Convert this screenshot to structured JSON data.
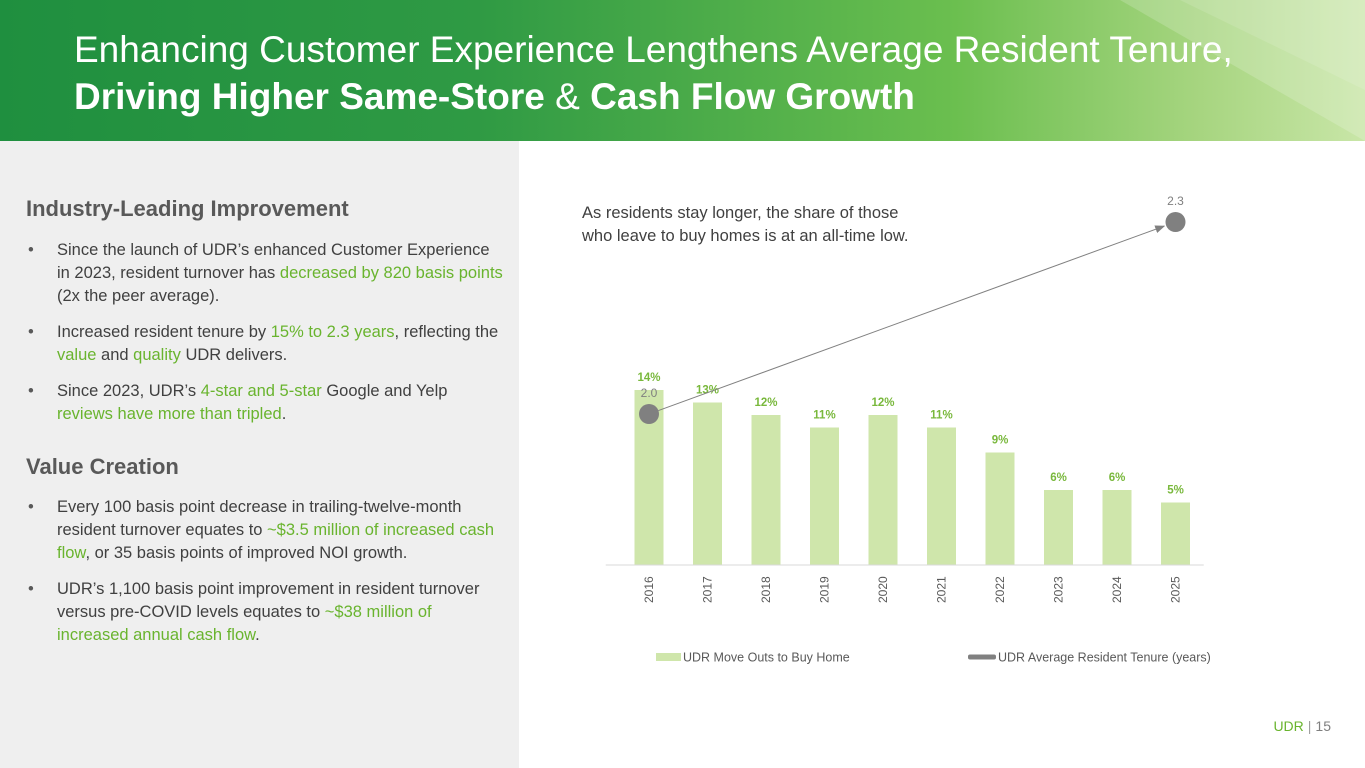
{
  "title": {
    "part1": "Enhancing Customer Experience Lengthens Average Resident Tenure,",
    "bold1": "Driving Higher Same-Store",
    "amp": "&",
    "bold2": "Cash Flow Growth"
  },
  "left": {
    "section1": {
      "heading": "Industry-Leading Improvement",
      "bullets": [
        {
          "a": "Since the launch of UDR’s enhanced Customer Experience in 2023, resident turnover has ",
          "h": "decreased by 820 basis points",
          "b": " (2x the peer average)."
        },
        {
          "a": "Increased resident tenure by ",
          "h": "15% to 2.3 years",
          "b": ", reflecting the ",
          "h2": "value",
          "c": " and ",
          "h3": "quality",
          "d": " UDR delivers."
        },
        {
          "a": "Since 2023, UDR’s ",
          "h": "4-star and 5-star",
          "b": " Google and Yelp ",
          "h2": "reviews have more than tripled",
          "c": "."
        }
      ]
    },
    "section2": {
      "heading": "Value Creation",
      "bullets": [
        {
          "a": "Every 100 basis point decrease in trailing-twelve-month resident turnover equates to ",
          "h": "~$3.5 million of increased cash flow",
          "b": ", or 35 basis points of improved NOI growth."
        },
        {
          "a": "UDR’s 1,100 basis point improvement in resident turnover versus pre-COVID levels equates to ",
          "h": "~$38 million of increased annual cash flow",
          "b": "."
        }
      ]
    }
  },
  "chart_data": {
    "type": "bar",
    "annotation": "As residents stay longer, the share of those who leave to buy homes is at an all-time low.",
    "categories": [
      "2016",
      "2017",
      "2018",
      "2019",
      "2020",
      "2021",
      "2022",
      "2023",
      "2024",
      "2025"
    ],
    "series": [
      {
        "name": "UDR Move Outs to Buy Home",
        "values": [
          14,
          13,
          12,
          11,
          12,
          11,
          9,
          6,
          6,
          5
        ],
        "labels": [
          "14%",
          "13%",
          "12%",
          "11%",
          "12%",
          "11%",
          "9%",
          "6%",
          "6%",
          "5%"
        ],
        "color": "#cfe6ab",
        "label_color": "#79b83c"
      },
      {
        "name": "UDR Average Resident Tenure (years)",
        "type": "line",
        "points": [
          {
            "x": "2016",
            "y": 2.0,
            "label": "2.0"
          },
          {
            "x": "2025",
            "y": 2.3,
            "label": "2.3"
          }
        ],
        "color": "#808080"
      }
    ],
    "legend_position": "bottom",
    "grid": false
  },
  "footer": {
    "brand": "UDR",
    "separator": "|",
    "page": "15"
  }
}
